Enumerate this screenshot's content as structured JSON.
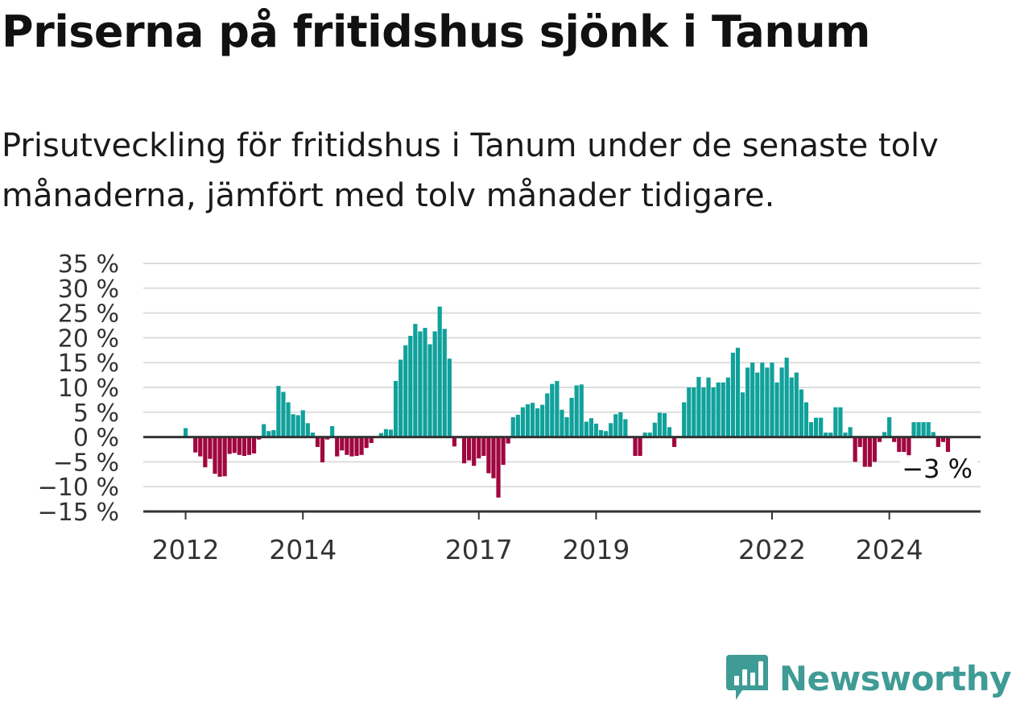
{
  "header": {
    "title": "Priserna på fritidshus sjönk i Tanum",
    "subtitle": "Prisutveckling för fritidshus i Tanum under de senaste tolv månaderna, jämfört med tolv månader tidigare."
  },
  "brand": {
    "name": "Newsworthy",
    "icon": "newsworthy-logo-icon",
    "color": "#3f9b95"
  },
  "colors": {
    "positive": "#10a19b",
    "negative": "#a0063f",
    "grid": "#dddddd",
    "axis": "#333333"
  },
  "chart_data": {
    "type": "bar",
    "title": "Priserna på fritidshus sjönk i Tanum",
    "subtitle": "Prisutveckling för fritidshus i Tanum under de senaste tolv månaderna, jämfört med tolv månader tidigare.",
    "xlabel": "",
    "ylabel": "",
    "unit": "%",
    "ylim": [
      -15,
      35
    ],
    "y_ticks": [
      35,
      30,
      25,
      20,
      15,
      10,
      5,
      0,
      -5,
      -10,
      -15
    ],
    "y_tick_labels": [
      "35 %",
      "30 %",
      "25 %",
      "20 %",
      "15 %",
      "10 %",
      "5 %",
      "0 %",
      "−5 %",
      "−10 %",
      "−15 %"
    ],
    "x_ticks": [
      {
        "label": "2012",
        "date": "2012-01"
      },
      {
        "label": "2014",
        "date": "2014-01"
      },
      {
        "label": "2017",
        "date": "2017-01"
      },
      {
        "label": "2019",
        "date": "2019-01"
      },
      {
        "label": "2022",
        "date": "2022-01"
      },
      {
        "label": "2024",
        "date": "2024-01"
      }
    ],
    "grid": true,
    "last_value_label": "−3 %",
    "series": [
      {
        "values": [
          {
            "date": "2011-05",
            "value": 0
          },
          {
            "date": "2011-06",
            "value": 0
          },
          {
            "date": "2011-07",
            "value": 0
          },
          {
            "date": "2011-08",
            "value": 0
          },
          {
            "date": "2011-09",
            "value": 0
          },
          {
            "date": "2011-10",
            "value": 0
          },
          {
            "date": "2011-11",
            "value": 0
          },
          {
            "date": "2011-12",
            "value": 0
          },
          {
            "date": "2012-01",
            "value": 1.8
          },
          {
            "date": "2012-02",
            "value": 0
          },
          {
            "date": "2012-03",
            "value": -3.1
          },
          {
            "date": "2012-04",
            "value": -3.9
          },
          {
            "date": "2012-05",
            "value": -6.1
          },
          {
            "date": "2012-06",
            "value": -4.4
          },
          {
            "date": "2012-07",
            "value": -7.4
          },
          {
            "date": "2012-08",
            "value": -8.0
          },
          {
            "date": "2012-09",
            "value": -7.9
          },
          {
            "date": "2012-10",
            "value": -3.4
          },
          {
            "date": "2012-11",
            "value": -3.2
          },
          {
            "date": "2012-12",
            "value": -3.6
          },
          {
            "date": "2013-01",
            "value": -3.8
          },
          {
            "date": "2013-02",
            "value": -3.6
          },
          {
            "date": "2013-03",
            "value": -3.3
          },
          {
            "date": "2013-04",
            "value": -0.5
          },
          {
            "date": "2013-05",
            "value": 2.6
          },
          {
            "date": "2013-06",
            "value": 1.2
          },
          {
            "date": "2013-07",
            "value": 1.4
          },
          {
            "date": "2013-08",
            "value": 10.3
          },
          {
            "date": "2013-09",
            "value": 9.1
          },
          {
            "date": "2013-10",
            "value": 7.0
          },
          {
            "date": "2013-11",
            "value": 4.6
          },
          {
            "date": "2013-12",
            "value": 4.4
          },
          {
            "date": "2014-01",
            "value": 5.4
          },
          {
            "date": "2014-02",
            "value": 2.8
          },
          {
            "date": "2014-03",
            "value": 0.9
          },
          {
            "date": "2014-04",
            "value": -2.0
          },
          {
            "date": "2014-05",
            "value": -5.1
          },
          {
            "date": "2014-06",
            "value": -0.5
          },
          {
            "date": "2014-07",
            "value": 2.2
          },
          {
            "date": "2014-08",
            "value": -3.9
          },
          {
            "date": "2014-09",
            "value": -2.7
          },
          {
            "date": "2014-10",
            "value": -3.6
          },
          {
            "date": "2014-11",
            "value": -3.9
          },
          {
            "date": "2014-12",
            "value": -3.8
          },
          {
            "date": "2015-01",
            "value": -3.6
          },
          {
            "date": "2015-02",
            "value": -2.2
          },
          {
            "date": "2015-03",
            "value": -1.2
          },
          {
            "date": "2015-04",
            "value": 0
          },
          {
            "date": "2015-05",
            "value": 0.8
          },
          {
            "date": "2015-06",
            "value": 1.6
          },
          {
            "date": "2015-07",
            "value": 1.5
          },
          {
            "date": "2015-08",
            "value": 11.3
          },
          {
            "date": "2015-09",
            "value": 15.6
          },
          {
            "date": "2015-10",
            "value": 18.5
          },
          {
            "date": "2015-11",
            "value": 20.4
          },
          {
            "date": "2015-12",
            "value": 22.8
          },
          {
            "date": "2016-01",
            "value": 21.3
          },
          {
            "date": "2016-02",
            "value": 22.0
          },
          {
            "date": "2016-03",
            "value": 18.7
          },
          {
            "date": "2016-04",
            "value": 21.3
          },
          {
            "date": "2016-05",
            "value": 26.3
          },
          {
            "date": "2016-06",
            "value": 21.8
          },
          {
            "date": "2016-07",
            "value": 15.8
          },
          {
            "date": "2016-08",
            "value": -1.9
          },
          {
            "date": "2016-09",
            "value": 0
          },
          {
            "date": "2016-10",
            "value": -5.3
          },
          {
            "date": "2016-11",
            "value": -4.7
          },
          {
            "date": "2016-12",
            "value": -5.8
          },
          {
            "date": "2017-01",
            "value": -4.3
          },
          {
            "date": "2017-02",
            "value": -3.8
          },
          {
            "date": "2017-03",
            "value": -7.3
          },
          {
            "date": "2017-04",
            "value": -8.3
          },
          {
            "date": "2017-05",
            "value": -12.2
          },
          {
            "date": "2017-06",
            "value": -5.6
          },
          {
            "date": "2017-07",
            "value": -1.3
          },
          {
            "date": "2017-08",
            "value": 4.0
          },
          {
            "date": "2017-09",
            "value": 4.5
          },
          {
            "date": "2017-10",
            "value": 6.0
          },
          {
            "date": "2017-11",
            "value": 6.6
          },
          {
            "date": "2017-12",
            "value": 6.9
          },
          {
            "date": "2018-01",
            "value": 5.8
          },
          {
            "date": "2018-02",
            "value": 6.5
          },
          {
            "date": "2018-03",
            "value": 8.8
          },
          {
            "date": "2018-04",
            "value": 10.7
          },
          {
            "date": "2018-05",
            "value": 11.3
          },
          {
            "date": "2018-06",
            "value": 5.5
          },
          {
            "date": "2018-07",
            "value": 4.0
          },
          {
            "date": "2018-08",
            "value": 7.9
          },
          {
            "date": "2018-09",
            "value": 10.4
          },
          {
            "date": "2018-10",
            "value": 10.6
          },
          {
            "date": "2018-11",
            "value": 3.1
          },
          {
            "date": "2018-12",
            "value": 3.8
          },
          {
            "date": "2019-01",
            "value": 2.7
          },
          {
            "date": "2019-02",
            "value": 1.4
          },
          {
            "date": "2019-03",
            "value": 1.2
          },
          {
            "date": "2019-04",
            "value": 2.8
          },
          {
            "date": "2019-05",
            "value": 4.6
          },
          {
            "date": "2019-06",
            "value": 5.0
          },
          {
            "date": "2019-07",
            "value": 3.6
          },
          {
            "date": "2019-08",
            "value": 0
          },
          {
            "date": "2019-09",
            "value": -3.8
          },
          {
            "date": "2019-10",
            "value": -3.8
          },
          {
            "date": "2019-11",
            "value": 0.9
          },
          {
            "date": "2019-12",
            "value": 0.9
          },
          {
            "date": "2020-01",
            "value": 2.9
          },
          {
            "date": "2020-02",
            "value": 4.9
          },
          {
            "date": "2020-03",
            "value": 4.8
          },
          {
            "date": "2020-04",
            "value": 2.0
          },
          {
            "date": "2020-05",
            "value": -2.0
          },
          {
            "date": "2020-06",
            "value": 0
          },
          {
            "date": "2020-07",
            "value": 7.0
          },
          {
            "date": "2020-08",
            "value": 10.0
          },
          {
            "date": "2020-09",
            "value": 10.0
          },
          {
            "date": "2020-10",
            "value": 12.1
          },
          {
            "date": "2020-11",
            "value": 10.0
          },
          {
            "date": "2020-12",
            "value": 12.0
          },
          {
            "date": "2021-01",
            "value": 10.0
          },
          {
            "date": "2021-02",
            "value": 11.0
          },
          {
            "date": "2021-03",
            "value": 11.0
          },
          {
            "date": "2021-04",
            "value": 12.0
          },
          {
            "date": "2021-05",
            "value": 17.0
          },
          {
            "date": "2021-06",
            "value": 18.0
          },
          {
            "date": "2021-07",
            "value": 9.0
          },
          {
            "date": "2021-08",
            "value": 14.0
          },
          {
            "date": "2021-09",
            "value": 15.0
          },
          {
            "date": "2021-10",
            "value": 13.0
          },
          {
            "date": "2021-11",
            "value": 15.0
          },
          {
            "date": "2021-12",
            "value": 14.0
          },
          {
            "date": "2022-01",
            "value": 15.0
          },
          {
            "date": "2022-02",
            "value": 11.0
          },
          {
            "date": "2022-03",
            "value": 14.0
          },
          {
            "date": "2022-04",
            "value": 16.0
          },
          {
            "date": "2022-05",
            "value": 12.0
          },
          {
            "date": "2022-06",
            "value": 13.0
          },
          {
            "date": "2022-07",
            "value": 9.6
          },
          {
            "date": "2022-08",
            "value": 7.0
          },
          {
            "date": "2022-09",
            "value": 3.0
          },
          {
            "date": "2022-10",
            "value": 3.9
          },
          {
            "date": "2022-11",
            "value": 3.9
          },
          {
            "date": "2022-12",
            "value": 0.9
          },
          {
            "date": "2023-01",
            "value": 0.9
          },
          {
            "date": "2023-02",
            "value": 6.0
          },
          {
            "date": "2023-03",
            "value": 6.0
          },
          {
            "date": "2023-04",
            "value": 0.9
          },
          {
            "date": "2023-05",
            "value": 2.0
          },
          {
            "date": "2023-06",
            "value": -5.0
          },
          {
            "date": "2023-07",
            "value": -2.0
          },
          {
            "date": "2023-08",
            "value": -6.0
          },
          {
            "date": "2023-09",
            "value": -6.0
          },
          {
            "date": "2023-10",
            "value": -5.0
          },
          {
            "date": "2023-11",
            "value": -1.0
          },
          {
            "date": "2023-12",
            "value": 1.0
          },
          {
            "date": "2024-01",
            "value": 4.0
          },
          {
            "date": "2024-02",
            "value": -1.0
          },
          {
            "date": "2024-03",
            "value": -3.0
          },
          {
            "date": "2024-04",
            "value": -3.0
          },
          {
            "date": "2024-05",
            "value": -4.0
          },
          {
            "date": "2024-06",
            "value": 3.0
          },
          {
            "date": "2024-07",
            "value": 3.0
          },
          {
            "date": "2024-08",
            "value": 3.0
          },
          {
            "date": "2024-09",
            "value": 3.0
          },
          {
            "date": "2024-10",
            "value": 1.0
          },
          {
            "date": "2024-11",
            "value": -2.0
          },
          {
            "date": "2024-12",
            "value": -1.0
          },
          {
            "date": "2025-01",
            "value": -3.0
          }
        ]
      }
    ]
  }
}
